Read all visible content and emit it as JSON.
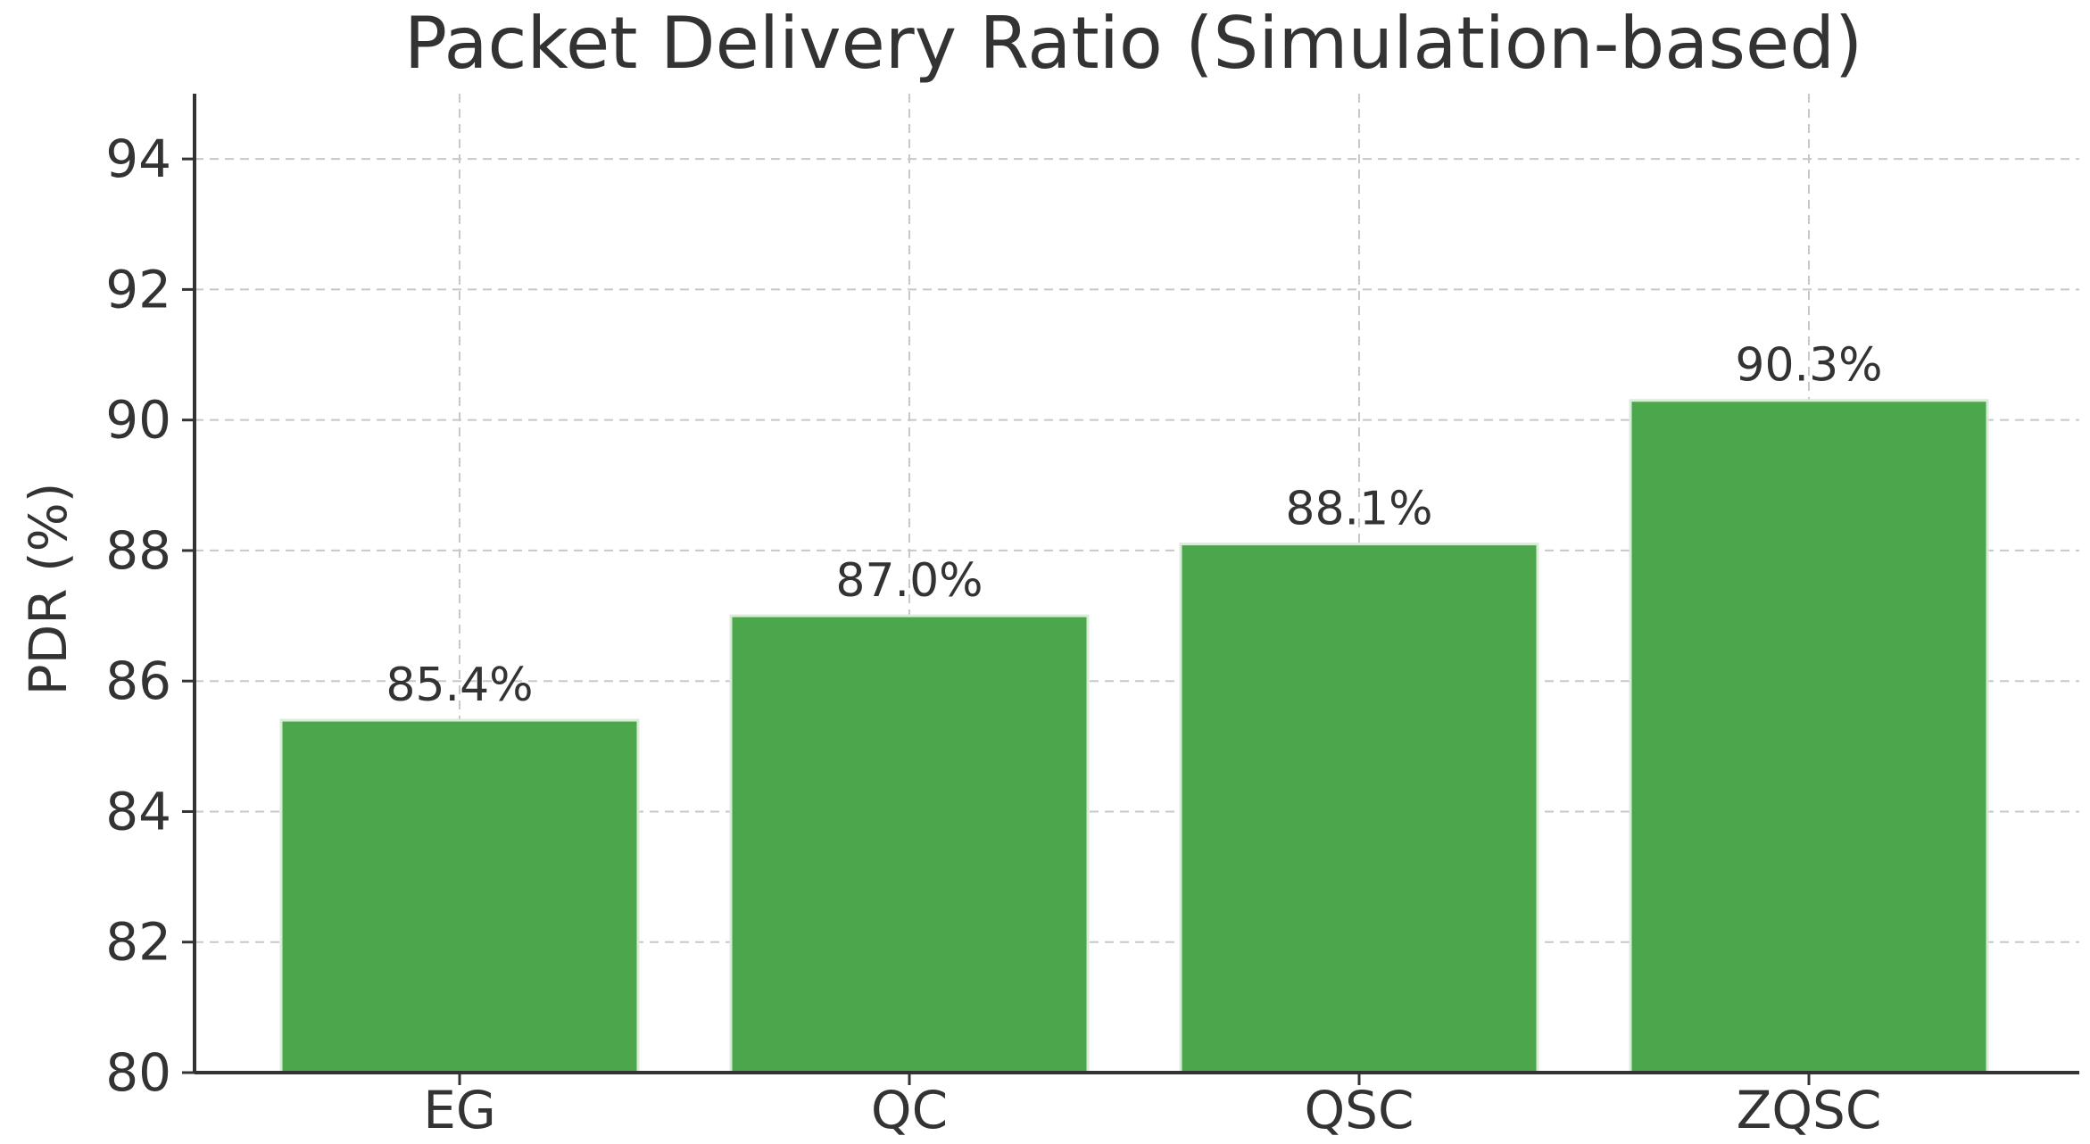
{
  "chart_data": {
    "type": "bar",
    "title": "Packet Delivery Ratio (Simulation-based)",
    "xlabel": "",
    "ylabel": "PDR (%)",
    "categories": [
      "EG",
      "QC",
      "QSC",
      "ZQSC"
    ],
    "values": [
      85.4,
      87.0,
      88.1,
      90.3
    ],
    "data_labels": [
      "85.4%",
      "87.0%",
      "88.1%",
      "90.3%"
    ],
    "ylim": [
      80,
      95
    ],
    "yticks": [
      80,
      82,
      84,
      86,
      88,
      90,
      92,
      94
    ],
    "ytick_labels": [
      "80",
      "82",
      "84",
      "86",
      "88",
      "90",
      "92",
      "94"
    ],
    "grid": true,
    "legend": "none",
    "colors": {
      "bar": "#4ca64c",
      "bar_edge": "#d8ecd8",
      "grid": "#c8c8c8",
      "axis": "#333333",
      "text": "#333333"
    }
  }
}
